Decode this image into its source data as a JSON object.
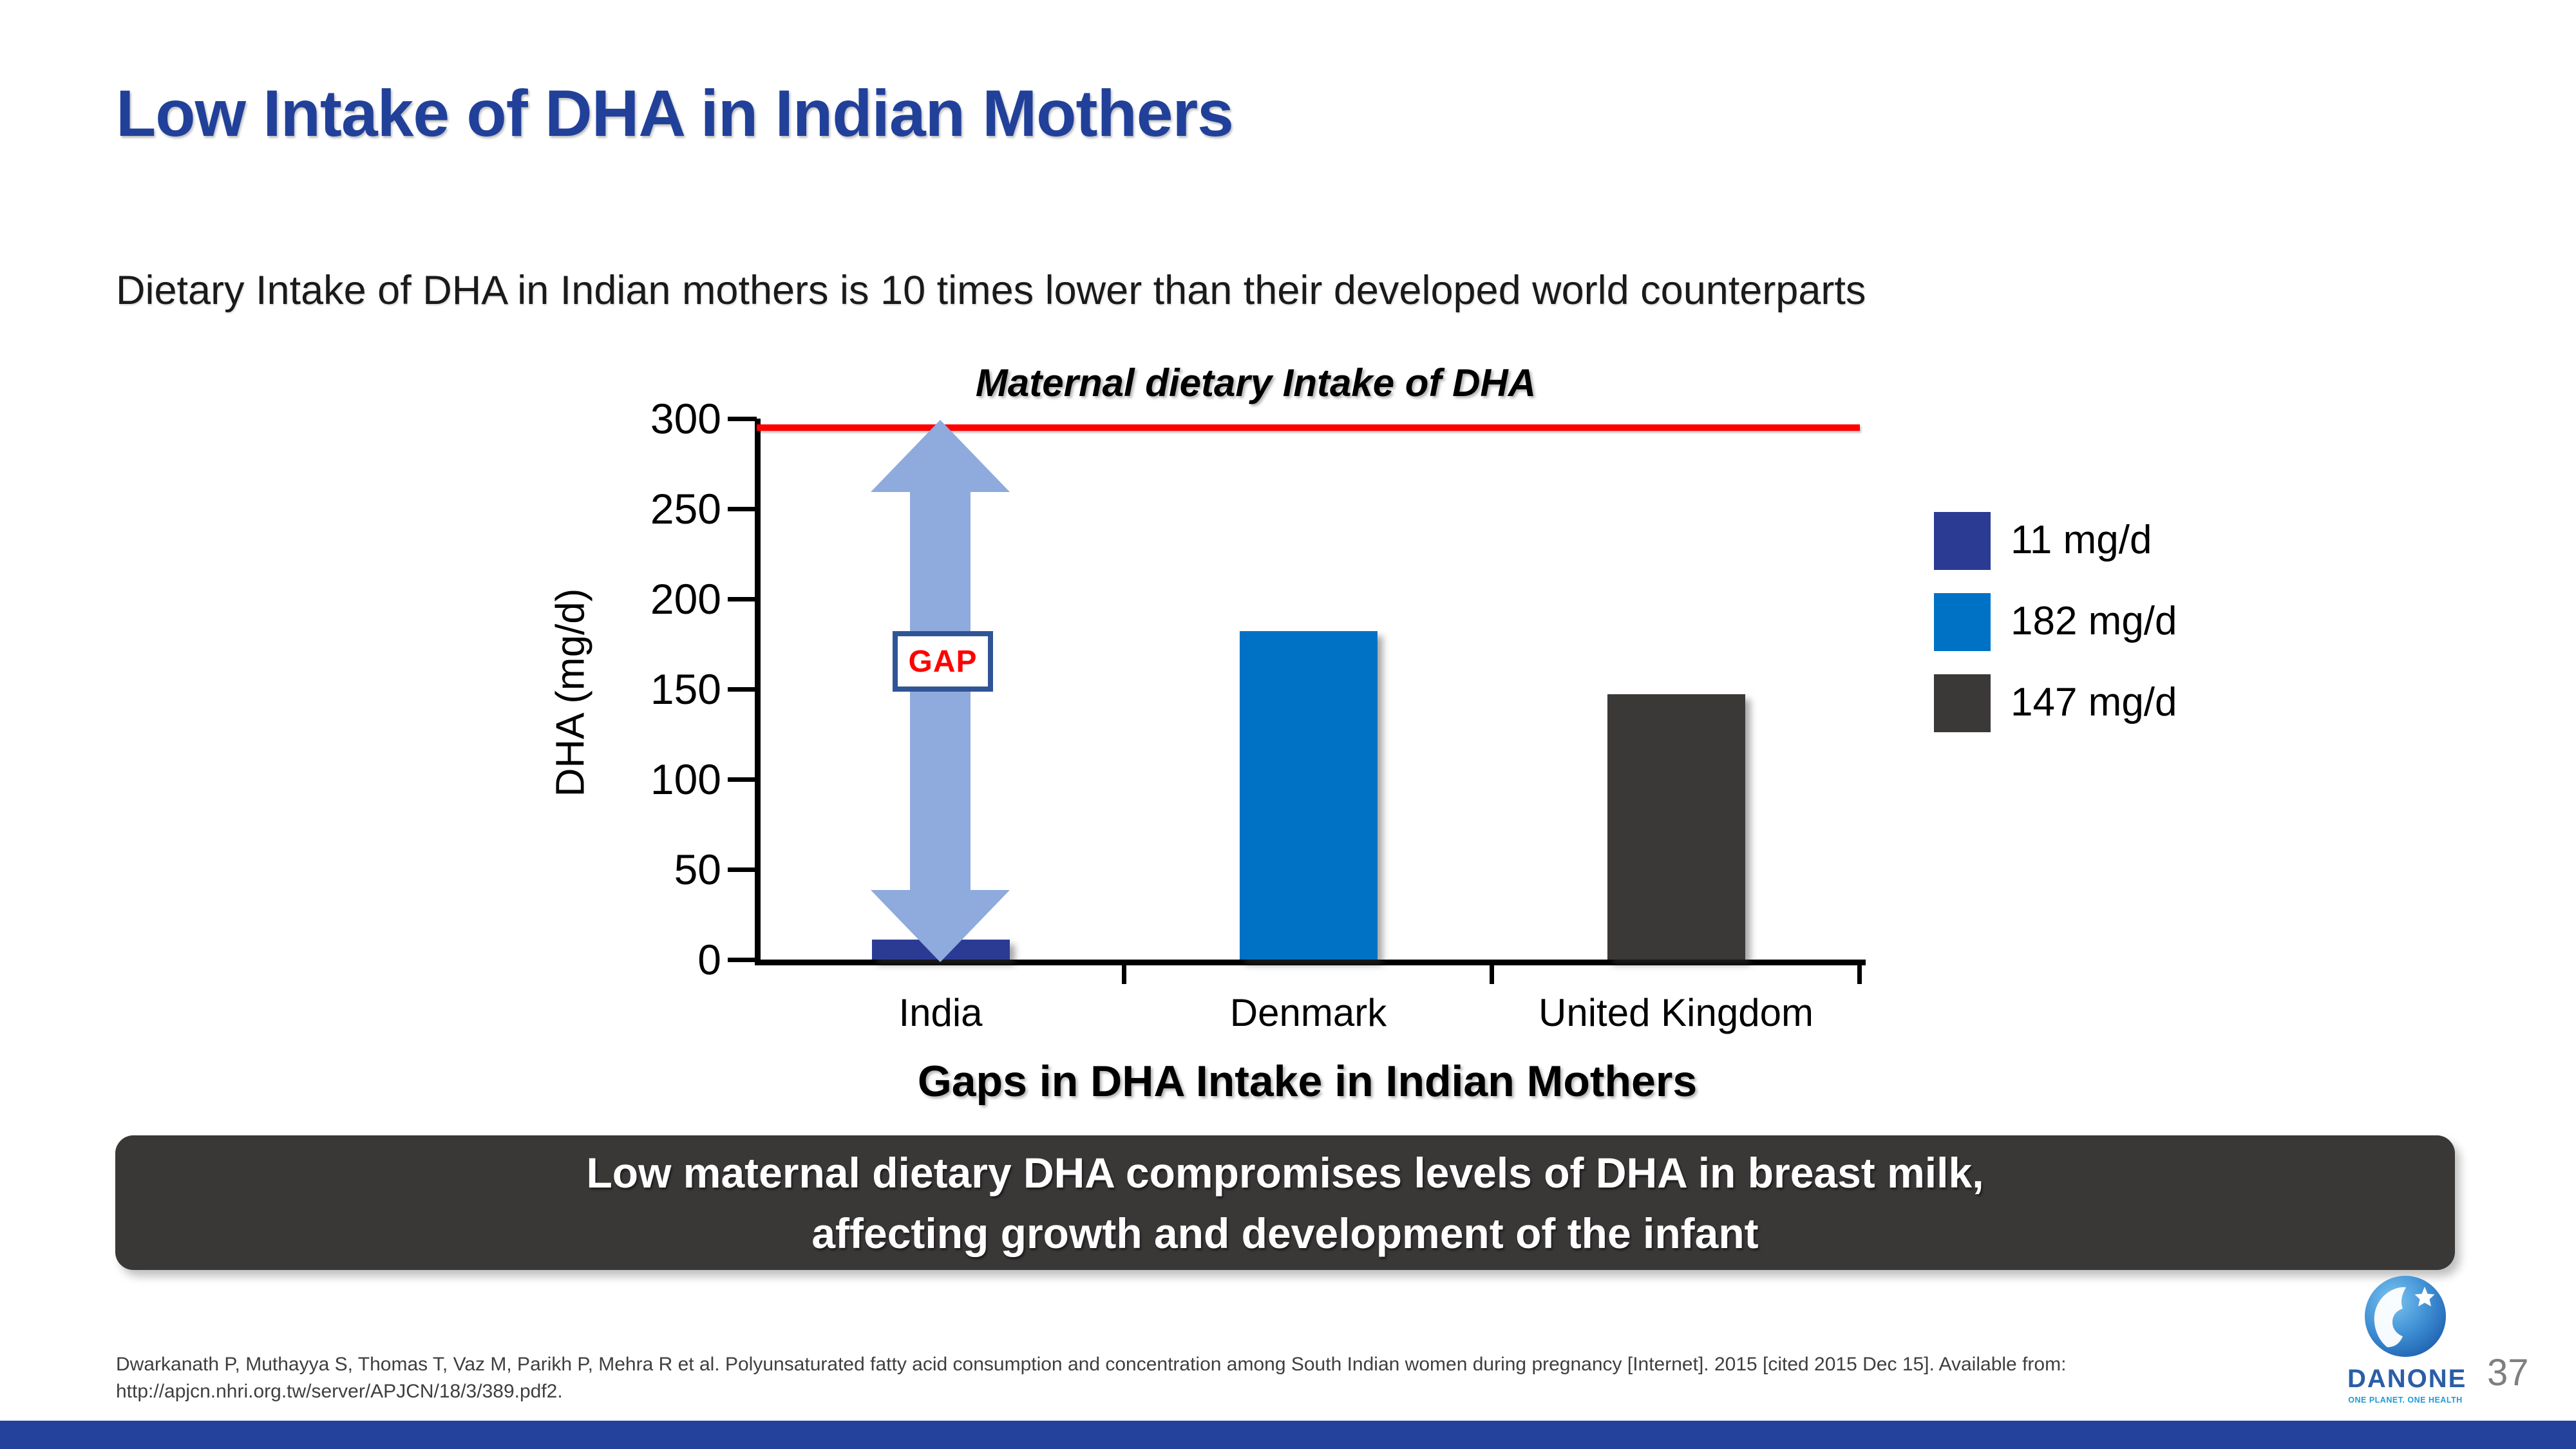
{
  "slide": {
    "title": "Low Intake of DHA in Indian Mothers",
    "subtitle": "Dietary Intake of DHA in Indian mothers is 10 times lower than their developed world counterparts",
    "page_number": "37"
  },
  "chart_data": {
    "type": "bar",
    "title": "Maternal dietary Intake of DHA",
    "caption": "Gaps in DHA Intake in Indian Mothers",
    "ylabel": "DHA (mg/d)",
    "categories": [
      "India",
      "Denmark",
      "United Kingdom"
    ],
    "values": [
      11,
      182,
      147
    ],
    "bar_colors": [
      "#2B3B94",
      "#0072C5",
      "#3B3838"
    ],
    "ylim": [
      0,
      300
    ],
    "yticks": [
      0,
      50,
      100,
      150,
      200,
      250,
      300
    ],
    "grid": false,
    "legend_position": "right",
    "legend": [
      {
        "label": "11 mg/d",
        "color": "#2B3B94"
      },
      {
        "label": "182 mg/d",
        "color": "#0072C5"
      },
      {
        "label": "147 mg/d",
        "color": "#3B3838"
      }
    ],
    "reference_line": {
      "value": 295,
      "color": "#FF0000"
    },
    "gap_label": "GAP"
  },
  "banner": {
    "line1": "Low maternal dietary DHA compromises levels of DHA in breast milk,",
    "line2": "affecting growth and development of the infant"
  },
  "footer": {
    "line1": "Dwarkanath P, Muthayya S, Thomas T, Vaz M, Parikh P, Mehra R et al. Polyunsaturated fatty acid consumption and concentration among South Indian women during pregnancy [Internet]. 2015 [cited 2015 Dec 15]. Available from:",
    "line2": "http://apjcn.nhri.org.tw/server/APJCN/18/3/389.pdf2."
  },
  "logo": {
    "brand": "DANONE",
    "tagline": "ONE PLANET. ONE HEALTH"
  },
  "colors": {
    "title_blue": "#21409A",
    "text_dark": "#1A1A1A",
    "banner_bg": "#3A3737",
    "banner_text": "#FFFFFF",
    "arrow_blue": "#8FAADC",
    "gap_border": "#2F5597",
    "gap_text": "#FF0000",
    "reference_red": "#FF0000",
    "axis_black": "#000000",
    "bottom_bar_blue": "#24419B",
    "page_number_gray": "#7F7F7F",
    "logo_blue": "#2B5EA7",
    "tagline_blue": "#1F9AD7",
    "footer_gray": "#3F3F3F"
  }
}
